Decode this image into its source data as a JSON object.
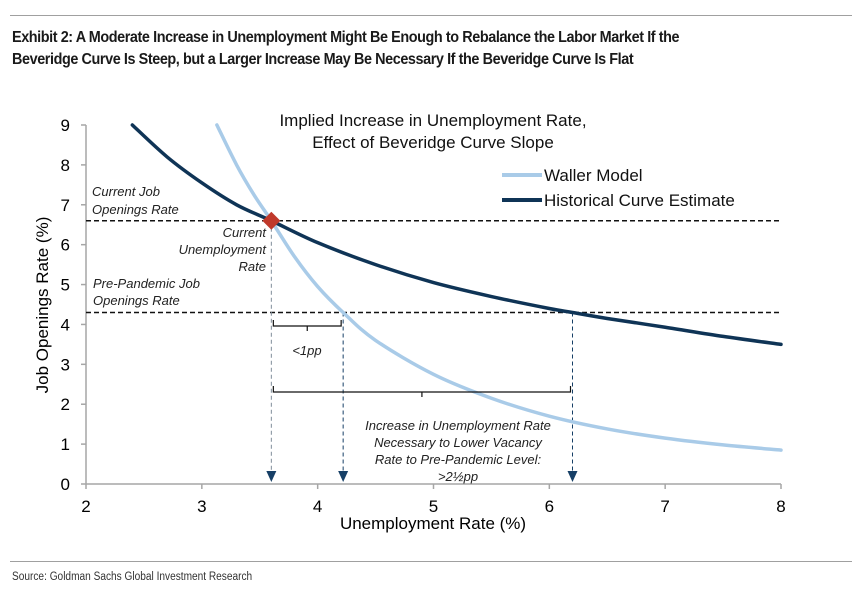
{
  "exhibit": {
    "title_line1": "Exhibit 2: A Moderate Increase in Unemployment Might Be Enough to Rebalance the Labor Market If the",
    "title_line2": "Beveridge Curve Is Steep, but a Larger Increase May Be Necessary If the Beveridge Curve Is Flat",
    "source": "Source: Goldman Sachs Global Investment Research"
  },
  "colors": {
    "waller": "#a9cbe8",
    "historical": "#0f3456",
    "marker": "#c0392b",
    "arrow": "#163f66",
    "axis": "#a6a6a6"
  },
  "chart_data": {
    "type": "line",
    "title_line1": "Implied Increase in Unemployment Rate,",
    "title_line2": "Effect of Beveridge Curve Slope",
    "xlabel": "Unemployment Rate (%)",
    "ylabel": "Job Openings Rate (%)",
    "xlim": [
      2,
      8
    ],
    "ylim": [
      0,
      9
    ],
    "xticks": [
      2,
      3,
      4,
      5,
      6,
      7,
      8
    ],
    "yticks": [
      0,
      1,
      2,
      3,
      4,
      5,
      6,
      7,
      8,
      9
    ],
    "grid": false,
    "legend_position": "top-right",
    "series": [
      {
        "name": "Waller Model",
        "x": [
          3.13,
          3.3,
          3.45,
          3.6,
          3.8,
          4.0,
          4.22,
          4.5,
          5.0,
          5.5,
          6.0,
          6.5,
          7.0,
          7.5,
          8.0
        ],
        "y": [
          9.0,
          8.0,
          7.25,
          6.6,
          5.7,
          4.95,
          4.3,
          3.6,
          2.75,
          2.15,
          1.7,
          1.38,
          1.15,
          0.98,
          0.85
        ]
      },
      {
        "name": "Historical Curve Estimate",
        "x": [
          2.4,
          2.7,
          3.0,
          3.3,
          3.6,
          4.0,
          4.5,
          5.0,
          5.5,
          6.0,
          6.2,
          6.5,
          7.0,
          7.5,
          8.0
        ],
        "y": [
          9.0,
          8.2,
          7.55,
          7.0,
          6.6,
          6.05,
          5.5,
          5.05,
          4.7,
          4.4,
          4.3,
          4.15,
          3.93,
          3.7,
          3.5
        ]
      }
    ],
    "reference_lines": [
      {
        "name": "Current Job Openings Rate",
        "y": 6.6
      },
      {
        "name": "Pre-Pandemic Job Openings Rate",
        "y": 4.3
      }
    ],
    "marker": {
      "name": "Current Unemployment Rate",
      "x": 3.6,
      "y": 6.6
    },
    "drop_lines_x": [
      3.6,
      4.22,
      6.2
    ],
    "brackets": [
      {
        "from": 3.6,
        "to": 4.22,
        "label": "<1pp"
      },
      {
        "from": 3.6,
        "to": 6.2,
        "label": ">2½pp"
      }
    ],
    "annotations": {
      "current_job_openings": [
        "Current Job",
        "Openings Rate"
      ],
      "pre_pandemic_job_openings": [
        "Pre-Pandemic Job",
        "Openings Rate"
      ],
      "current_unemployment": [
        "Current",
        "Unemployment",
        "Rate"
      ],
      "small_bracket": "<1pp",
      "large_bracket": [
        "Increase in Unemployment Rate",
        "Necessary to Lower Vacancy",
        "Rate to Pre-Pandemic Level:",
        ">2½pp"
      ]
    }
  }
}
